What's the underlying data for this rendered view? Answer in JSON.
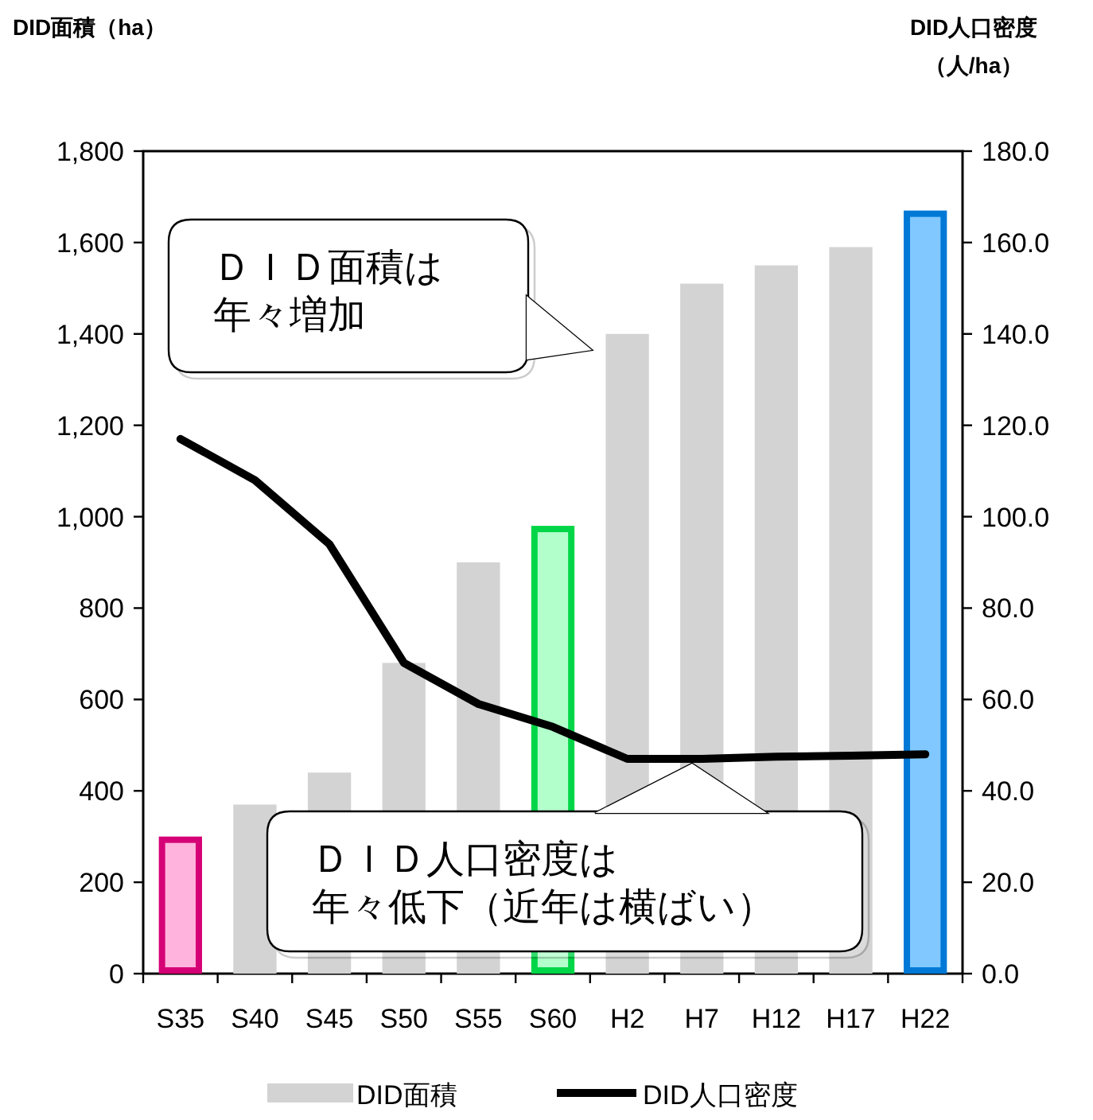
{
  "chart_data": {
    "type": "bar",
    "ylabel": "DID面積（ha）",
    "y2label": "DID人口密度（人/ha）",
    "categories": [
      "S35",
      "S40",
      "S45",
      "S50",
      "S55",
      "S60",
      "H2",
      "H7",
      "H12",
      "H17",
      "H22"
    ],
    "series": [
      {
        "name": "DID面積",
        "color": "#d3d3d3",
        "colors": [
          "#ffb3dd",
          "#d3d3d3",
          "#d3d3d3",
          "#d3d3d3",
          "#d3d3d3",
          "#b3ffcc",
          "#d3d3d3",
          "#d3d3d3",
          "#d3d3d3",
          "#d3d3d3",
          "#80c8ff"
        ],
        "values": [
          300,
          370,
          440,
          680,
          900,
          980,
          1400,
          1510,
          1550,
          1590,
          1670
        ]
      },
      {
        "name": "DID人口密度",
        "type": "line",
        "axis": "y2",
        "color": "#000000",
        "values": [
          117,
          108,
          94,
          68,
          59,
          54,
          47,
          47,
          47.5,
          47.7,
          48
        ]
      }
    ],
    "ylim": [
      0,
      1800
    ],
    "yticks": [
      0,
      {
        "value": 200,
        "label": "200"
      },
      {
        "value": 400,
        "label": "400"
      },
      {
        "value": 600,
        "label": "600"
      },
      {
        "value": 800,
        "label": "800"
      },
      {
        "value": 1000,
        "label": "1,000"
      },
      {
        "value": 1200,
        "label": "1,200"
      },
      {
        "value": 1400,
        "label": "1,400"
      },
      {
        "value": 1600,
        "label": "1,600"
      },
      {
        "value": 1800,
        "label": "1,800"
      }
    ],
    "y2lim": [
      0,
      180
    ],
    "y2ticks": [
      {
        "value": 0,
        "label": "0.0"
      },
      {
        "value": 20,
        "label": "20.0"
      },
      {
        "value": 40,
        "label": "40.0"
      },
      {
        "value": 60,
        "label": "60.0"
      },
      {
        "value": 80,
        "label": "80.0"
      },
      {
        "value": 100,
        "label": "100.0"
      },
      {
        "value": 120,
        "label": "120.0"
      },
      {
        "value": 140,
        "label": "140.0"
      },
      {
        "value": 160,
        "label": "160.0"
      },
      {
        "value": 180,
        "label": "180.0"
      }
    ],
    "annotations": [
      "ＤＩＤ面積は年々増加",
      "ＤＩＤ人口密度は年々低下（近年は横ばい）"
    ],
    "grid": false,
    "legend": "bottom",
    "marker": "none",
    "line_style": "solid"
  }
}
